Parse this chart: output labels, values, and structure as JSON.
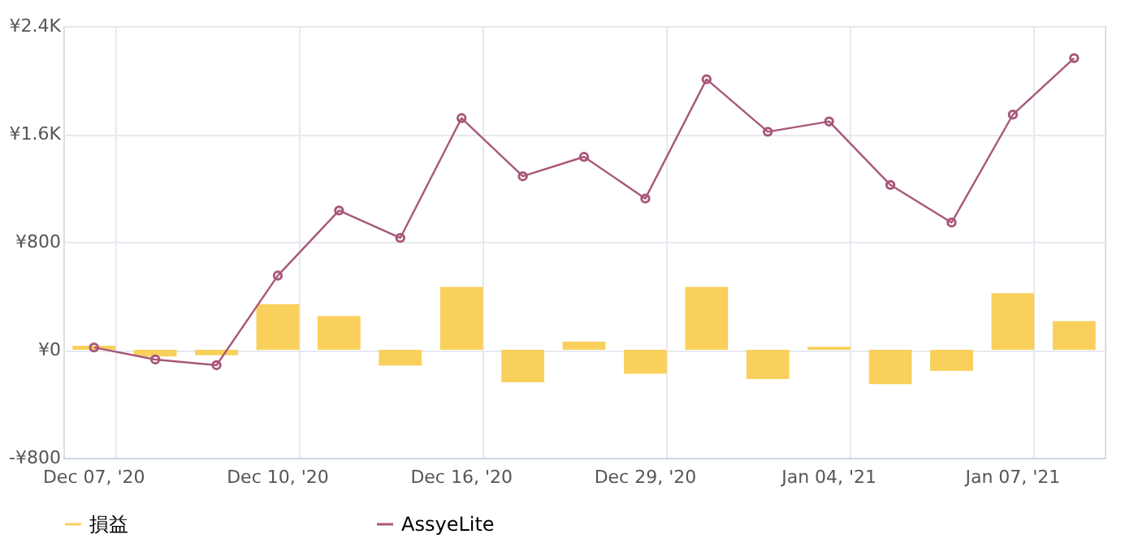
{
  "chart_data": {
    "type": "bar",
    "categories": [
      "Dec 07, '20",
      null,
      null,
      "Dec 10, '20",
      null,
      null,
      "Dec 16, '20",
      null,
      null,
      "Dec 29, '20",
      null,
      null,
      "Jan 04, '21",
      null,
      null,
      "Jan 07, '21",
      null
    ],
    "series": [
      {
        "name": "損益",
        "color": "#f9d05c",
        "values": [
          30,
          -50,
          -40,
          338,
          250,
          -118,
          466,
          -241,
          60,
          -178,
          466,
          -216,
          22,
          -254,
          -156,
          419,
          212
        ]
      },
      {
        "name": "AssyeLite",
        "type": "line",
        "color": "#a8577a",
        "marker": "circle",
        "values": [
          17,
          -72,
          -114,
          550,
          1032,
          829,
          1717,
          1286,
          1430,
          1121,
          2005,
          1616,
          1692,
          1222,
          943,
          1743,
          2162
        ]
      }
    ],
    "ylim": [
      -800,
      2400
    ],
    "yticks": [
      {
        "value": -800,
        "label": "-¥800"
      },
      {
        "value": 0,
        "label": "¥0"
      },
      {
        "value": 800,
        "label": "¥800"
      },
      {
        "value": 1600,
        "label": "¥1.6K"
      },
      {
        "value": 2400,
        "label": "¥2.4K"
      }
    ],
    "grid": true,
    "legend": "bottom"
  }
}
